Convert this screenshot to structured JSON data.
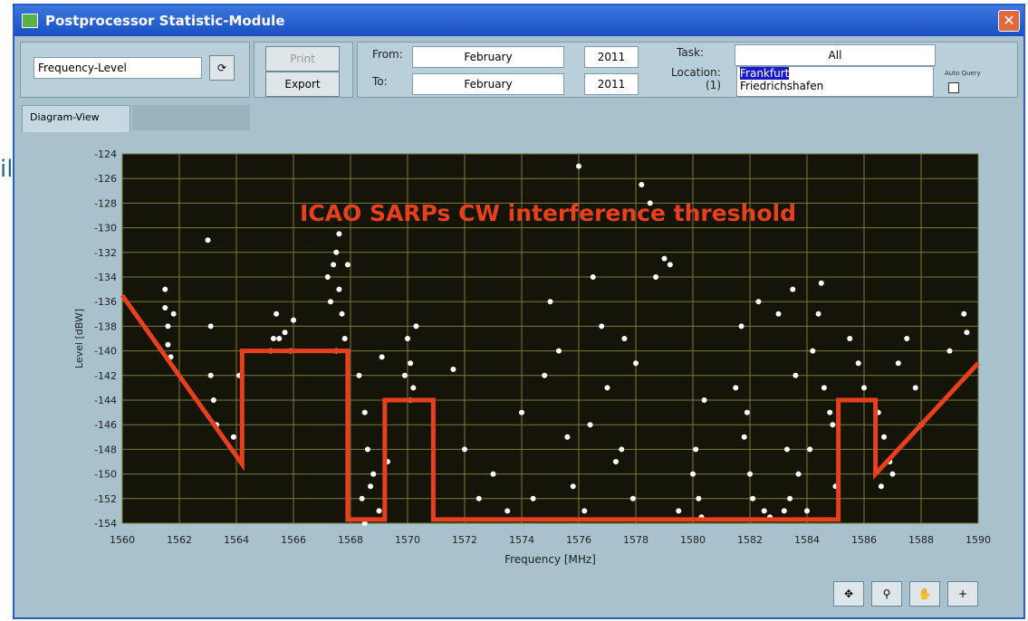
{
  "window": {
    "title": "Postprocessor Statistic-Module",
    "background_fragment": "il",
    "view_selector": "Frequency-Level",
    "print": "Print",
    "export": "Export",
    "from_label": "From:",
    "to_label": "To:",
    "from_month": "February",
    "to_month": "February",
    "from_year": "2011",
    "to_year": "2011",
    "task_label": "Task:",
    "task": "All",
    "location_label": "Location:",
    "location_count": "(1)",
    "locations": [
      "Frankfurt",
      "Friedrichshafen"
    ],
    "auto_query": "Auto Query",
    "tab": "Diagram-View"
  },
  "chart_data": {
    "type": "scatter",
    "annotation": "ICAO SARPs CW interference threshold",
    "x_label": "Frequency [MHz]",
    "y_label": "Level [dBW]",
    "xlim": [
      1560,
      1590
    ],
    "xticks": [
      1560,
      1562,
      1564,
      1566,
      1568,
      1570,
      1572,
      1574,
      1576,
      1578,
      1580,
      1582,
      1584,
      1586,
      1588,
      1590
    ],
    "ylim": [
      -154,
      -124
    ],
    "yticks": [
      -154,
      -152,
      -150,
      -148,
      -146,
      -144,
      -142,
      -140,
      -138,
      -136,
      -134,
      -132,
      -130,
      -128,
      -126,
      -124
    ],
    "grid": true,
    "background": "#141408",
    "grid_color": "#7c7a3a",
    "series": [
      {
        "type": "scatter",
        "color": "#ffffff",
        "x": [
          1561.5,
          1561.5,
          1561.6,
          1561.6,
          1561.7,
          1561.8,
          1563.0,
          1563.1,
          1563.1,
          1563.2,
          1563.3,
          1563.9,
          1564.1,
          1565.2,
          1565.4,
          1565.5,
          1565.7,
          1565.9,
          1566.0,
          1565.3,
          1567.2,
          1567.4,
          1567.5,
          1567.6,
          1567.7,
          1567.8,
          1567.3,
          1567.5,
          1567.9,
          1567.6,
          1568.3,
          1568.5,
          1568.6,
          1568.8,
          1568.4,
          1569.0,
          1568.7,
          1569.3,
          1568.5,
          1569.1,
          1570.0,
          1570.1,
          1570.2,
          1569.9,
          1570.1,
          1570.3,
          1571.6,
          1572.0,
          1572.5,
          1573.0,
          1573.5,
          1574.0,
          1574.4,
          1574.8,
          1575.0,
          1575.3,
          1575.6,
          1575.8,
          1576.0,
          1576.2,
          1576.4,
          1576.8,
          1577.0,
          1577.3,
          1577.6,
          1577.9,
          1578.2,
          1578.5,
          1578.7,
          1579.0,
          1579.2,
          1578.0,
          1577.5,
          1576.5,
          1579.5,
          1580.0,
          1580.2,
          1580.4,
          1580.1,
          1580.3,
          1581.5,
          1581.7,
          1581.8,
          1582.0,
          1582.1,
          1582.3,
          1581.9,
          1582.5,
          1582.7,
          1583.0,
          1583.3,
          1583.5,
          1583.7,
          1584.0,
          1584.2,
          1584.5,
          1584.8,
          1585.0,
          1583.2,
          1583.6,
          1584.4,
          1584.9,
          1583.4,
          1584.1,
          1584.6,
          1585.5,
          1585.8,
          1586.0,
          1586.5,
          1586.7,
          1586.9,
          1587.2,
          1587.5,
          1587.8,
          1588.0,
          1587.0,
          1586.6,
          1589.0,
          1589.5,
          1589.6
        ],
        "values": [
          -135,
          -136.5,
          -138,
          -139.5,
          -140.5,
          -137,
          -131,
          -138,
          -142,
          -144,
          -146,
          -147,
          -142,
          -140,
          -137,
          -139,
          -138.5,
          -140,
          -137.5,
          -139,
          -134,
          -133,
          -132,
          -135,
          -137,
          -139,
          -136,
          -140,
          -133,
          -130.5,
          -142,
          -145,
          -148,
          -150,
          -152,
          -153,
          -151,
          -149,
          -154,
          -140.5,
          -139,
          -141,
          -143,
          -142,
          -144,
          -138,
          -141.5,
          -148,
          -152,
          -150,
          -153,
          -145,
          -152,
          -142,
          -136,
          -140,
          -147,
          -151,
          -125,
          -153,
          -146,
          -138,
          -143,
          -149,
          -139,
          -152,
          -126.5,
          -128,
          -134,
          -132.5,
          -133,
          -141,
          -148,
          -134,
          -153,
          -150,
          -152,
          -144,
          -148,
          -153.5,
          -143,
          -138,
          -147,
          -150,
          -152,
          -136,
          -145,
          -153,
          -153.5,
          -137,
          -148,
          -135,
          -150,
          -153,
          -140,
          -134.5,
          -145,
          -151,
          -153,
          -142,
          -137,
          -146,
          -152,
          -148,
          -143,
          -139,
          -141,
          -143,
          -145,
          -147,
          -149,
          -141,
          -139,
          -143,
          -146,
          -150,
          -151,
          -140,
          -137,
          -138.5
        ]
      },
      {
        "type": "line",
        "color": "#e8401c",
        "x": [
          1560,
          1564.2,
          1564.2,
          1567.9,
          1567.9,
          1569.2,
          1569.2,
          1570.9,
          1570.9,
          1585.1,
          1585.1,
          1586.4,
          1586.4,
          1590
        ],
        "values": [
          -135.5,
          -149.2,
          -140,
          -140,
          -153.7,
          -153.7,
          -144,
          -144,
          -153.7,
          -153.7,
          -144,
          -144,
          -150,
          -141
        ]
      }
    ]
  }
}
